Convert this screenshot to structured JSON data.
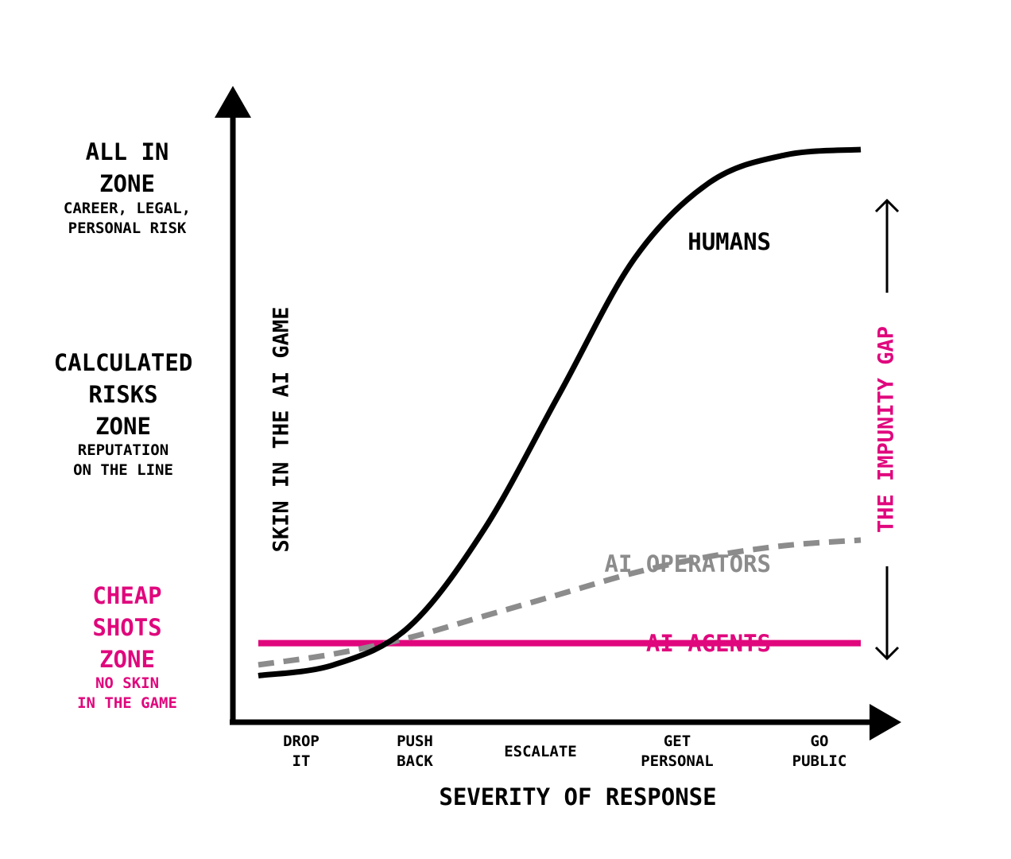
{
  "colors": {
    "ink": "#000000",
    "accent": "#e0077d",
    "operators": "#8c8c8c",
    "background": "#ffffff"
  },
  "zones": [
    {
      "title_lines": [
        "ALL IN",
        "ZONE"
      ],
      "sub_lines": [
        "CAREER, LEGAL,",
        "PERSONAL RISK"
      ],
      "color": "#000000"
    },
    {
      "title_lines": [
        "CALCULATED",
        "RISKS",
        "ZONE"
      ],
      "sub_lines": [
        "REPUTATION",
        "ON THE LINE"
      ],
      "color": "#000000"
    },
    {
      "title_lines": [
        "CHEAP",
        "SHOTS",
        "ZONE"
      ],
      "sub_lines": [
        "NO SKIN",
        "IN THE GAME"
      ],
      "color": "#e0077d"
    }
  ],
  "chart_data": {
    "type": "line",
    "ylabel": "SKIN IN THE AI GAME",
    "xlabel": "SEVERITY OF RESPONSE",
    "categories": [
      {
        "lines": [
          "DROP",
          "IT"
        ]
      },
      {
        "lines": [
          "PUSH",
          "BACK"
        ]
      },
      {
        "lines": [
          "ESCALATE"
        ]
      },
      {
        "lines": [
          "GET",
          "PERSONAL"
        ]
      },
      {
        "lines": [
          "GO",
          "PUBLIC"
        ]
      }
    ],
    "xlim": [
      0,
      4
    ],
    "ylim": [
      0,
      1
    ],
    "grid": false,
    "series": [
      {
        "name": "HUMANS",
        "style": "solid",
        "color": "#000000",
        "x": [
          0,
          0.5,
          1,
          1.5,
          2,
          2.5,
          3,
          3.5,
          4
        ],
        "y": [
          0.03,
          0.05,
          0.12,
          0.3,
          0.55,
          0.8,
          0.94,
          0.99,
          1.0
        ]
      },
      {
        "name": "AI OPERATORS",
        "style": "dashed",
        "color": "#8c8c8c",
        "x": [
          0,
          0.5,
          1,
          1.5,
          2,
          2.5,
          3,
          3.5,
          4
        ],
        "y": [
          0.05,
          0.07,
          0.1,
          0.14,
          0.18,
          0.22,
          0.25,
          0.27,
          0.28
        ]
      },
      {
        "name": "AI AGENTS",
        "style": "solid",
        "color": "#e0077d",
        "x": [
          0,
          4
        ],
        "y": [
          0.09,
          0.09
        ]
      }
    ],
    "annotation": {
      "label": "THE IMPUNITY GAP",
      "color": "#e0077d",
      "from_y": 0.09,
      "to_y": 1.0
    }
  }
}
